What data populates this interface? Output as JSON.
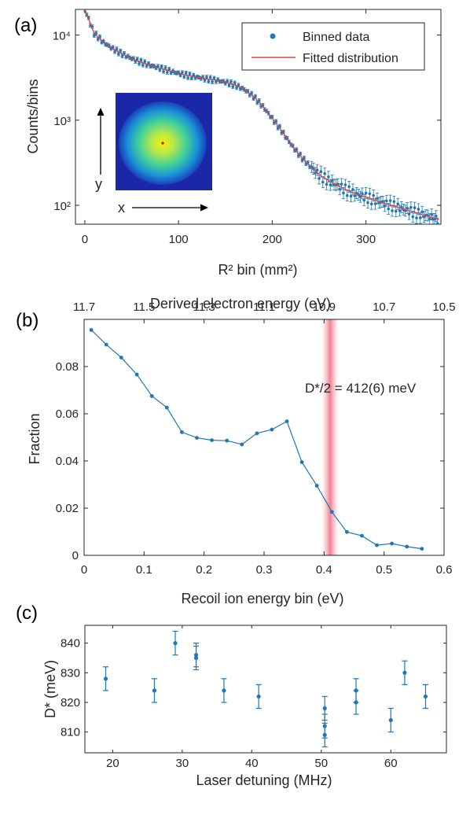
{
  "panels": {
    "a": {
      "label": "(a)"
    },
    "b": {
      "label": "(b)"
    },
    "c": {
      "label": "(c)"
    }
  },
  "chart_data": [
    {
      "type": "scatter",
      "panel": "(a)",
      "xlabel": "R² bin (mm²)",
      "ylabel": "Counts/bins",
      "xlim": [
        -10,
        380
      ],
      "ylim": [
        60,
        20000
      ],
      "y_scale": "log",
      "xticks": [
        0,
        100,
        200,
        300
      ],
      "yticks": [
        {
          "value": 100,
          "label": "10²"
        },
        {
          "value": 1000,
          "label": "10³"
        },
        {
          "value": 10000,
          "label": "10⁴"
        }
      ],
      "legend": {
        "position": "top-right",
        "entries": [
          "Binned data",
          "Fitted distribution"
        ]
      },
      "inset": {
        "x_label": "x",
        "y_label": "y"
      },
      "series": [
        {
          "name": "Binned data",
          "color": "#1f77b4",
          "x": [
            0,
            10,
            20,
            30,
            40,
            50,
            60,
            70,
            80,
            90,
            100,
            110,
            120,
            130,
            140,
            150,
            160,
            170,
            180,
            190,
            200,
            210,
            220,
            230,
            240,
            250,
            260,
            270,
            280,
            290,
            300,
            310,
            320,
            330,
            340,
            350,
            360,
            370,
            378
          ],
          "y": [
            20000,
            10500,
            8200,
            6900,
            6000,
            5300,
            4800,
            4400,
            4100,
            3800,
            3550,
            3350,
            3200,
            3050,
            2950,
            2800,
            2600,
            2300,
            1900,
            1450,
            1050,
            750,
            520,
            380,
            290,
            230,
            195,
            170,
            150,
            135,
            125,
            115,
            105,
            98,
            90,
            84,
            78,
            72,
            68
          ]
        },
        {
          "name": "Fitted distribution",
          "color": "#e8413a",
          "x": [
            0,
            10,
            20,
            30,
            40,
            50,
            60,
            70,
            80,
            90,
            100,
            110,
            120,
            130,
            140,
            150,
            160,
            170,
            180,
            190,
            200,
            210,
            220,
            230,
            240,
            250,
            260,
            270,
            280,
            290,
            300,
            310,
            320,
            330,
            340,
            350,
            360,
            370,
            378
          ],
          "y": [
            20000,
            10500,
            8200,
            6900,
            6000,
            5300,
            4800,
            4400,
            4100,
            3800,
            3550,
            3350,
            3200,
            3050,
            2950,
            2800,
            2600,
            2300,
            1900,
            1450,
            1050,
            750,
            520,
            380,
            290,
            230,
            195,
            170,
            150,
            135,
            125,
            115,
            105,
            98,
            90,
            84,
            78,
            72,
            68
          ]
        }
      ]
    },
    {
      "type": "line",
      "panel": "(b)",
      "title": "Derived electron energy (eV)",
      "xlabel": "Recoil ion energy bin (eV)",
      "ylabel": "Fraction",
      "xlim": [
        0,
        0.6
      ],
      "ylim": [
        0,
        0.1
      ],
      "xticks": [
        0,
        0.1,
        0.2,
        0.3,
        0.4,
        0.5,
        0.6
      ],
      "yticks": [
        0,
        0.02,
        0.04,
        0.06,
        0.08
      ],
      "top_ticks": [
        "11.7",
        "11.5",
        "11.3",
        "11.1",
        "10.9",
        "10.7",
        "10.5"
      ],
      "annotation": {
        "text": "D*/2 = 412(6) meV",
        "x": 0.412
      },
      "series": [
        {
          "color": "#1f77b4",
          "x": [
            0.012,
            0.037,
            0.062,
            0.088,
            0.113,
            0.138,
            0.163,
            0.188,
            0.213,
            0.238,
            0.263,
            0.288,
            0.313,
            0.338,
            0.363,
            0.388,
            0.413,
            0.438,
            0.463,
            0.488,
            0.513,
            0.538,
            0.563
          ],
          "values": [
            0.0955,
            0.0893,
            0.0838,
            0.0766,
            0.0675,
            0.0626,
            0.0522,
            0.0498,
            0.0488,
            0.0486,
            0.047,
            0.0517,
            0.0533,
            0.0568,
            0.0395,
            0.0295,
            0.0184,
            0.0099,
            0.0083,
            0.0043,
            0.005,
            0.0037,
            0.0028
          ]
        }
      ]
    },
    {
      "type": "scatter",
      "panel": "(c)",
      "xlabel": "Laser detuning (MHz)",
      "ylabel": "D* (meV)",
      "xlim": [
        16,
        68
      ],
      "ylim": [
        803,
        846
      ],
      "xticks": [
        20,
        30,
        40,
        50,
        60
      ],
      "yticks": [
        810,
        820,
        830,
        840
      ],
      "series": [
        {
          "color": "#1f77b4",
          "x": [
            19,
            26,
            29,
            32,
            32,
            36,
            41,
            50.5,
            50.5,
            50.5,
            55,
            55,
            60,
            62,
            65
          ],
          "values": [
            828,
            824,
            840,
            836,
            835,
            824,
            822,
            818,
            812,
            809,
            824,
            820,
            814,
            830,
            822
          ],
          "errors": [
            4,
            4,
            4,
            4,
            4,
            4,
            4,
            4,
            4,
            4,
            4,
            4,
            4,
            4,
            4
          ]
        }
      ]
    }
  ]
}
